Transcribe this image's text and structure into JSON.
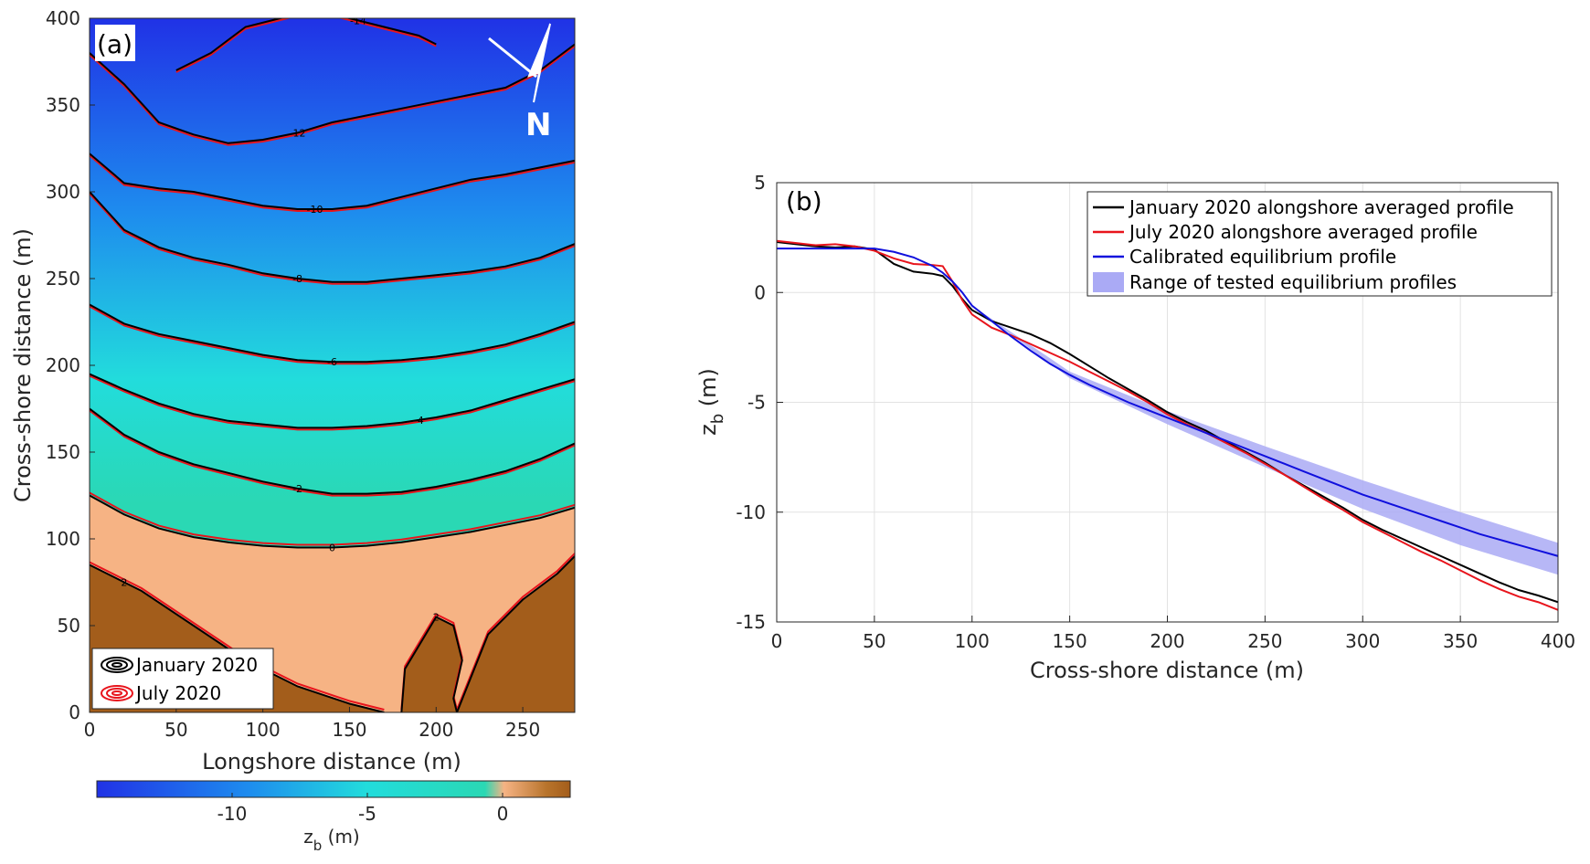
{
  "chart_data": [
    {
      "panel_label": "(a)",
      "type": "heatmap",
      "xlabel": "Longshore distance (m)",
      "ylabel": "Cross-shore distance (m)",
      "xlim": [
        0,
        280
      ],
      "ylim": [
        0,
        400
      ],
      "xticks": [
        "0",
        "50",
        "100",
        "150",
        "200",
        "250"
      ],
      "yticks": [
        "0",
        "50",
        "100",
        "150",
        "200",
        "250",
        "300",
        "350",
        "400"
      ],
      "colorbar": {
        "label_main": "z",
        "label_sub": "b",
        "label_unit": " (m)",
        "range": [
          -15,
          2.5
        ],
        "ticks": [
          "-10",
          "-5",
          "0"
        ],
        "colors": [
          "#2032e6",
          "#1e8cee",
          "#22dcdc",
          "#2ad8b4",
          "#f6b384",
          "#b8742c",
          "#a35d1b"
        ]
      },
      "north_arrow_label": "N",
      "contour_levels": [
        -14,
        -12,
        -10,
        -8,
        -6,
        -4,
        -2,
        0,
        2
      ],
      "legend": [
        {
          "name": "January 2020",
          "color": "#000000"
        },
        {
          "name": "July 2020",
          "color": "#e8141c"
        }
      ],
      "surface_contours": [
        {
          "level": -14,
          "label": "-14",
          "x": [
            50,
            70,
            90,
            110,
            130,
            150,
            170,
            190,
            200
          ],
          "y": [
            370,
            380,
            395,
            400,
            405,
            400,
            395,
            390,
            385
          ],
          "label_x": 155
        },
        {
          "level": -12,
          "label": "-12",
          "x": [
            0,
            20,
            40,
            60,
            80,
            100,
            120,
            140,
            160,
            180,
            200,
            220,
            240,
            260,
            280
          ],
          "y": [
            380,
            362,
            340,
            333,
            328,
            330,
            334,
            340,
            344,
            348,
            352,
            356,
            360,
            370,
            385
          ],
          "label_x": 120
        },
        {
          "level": -10,
          "label": "-10",
          "x": [
            0,
            20,
            40,
            60,
            80,
            100,
            120,
            140,
            160,
            180,
            200,
            220,
            240,
            260,
            280
          ],
          "y": [
            322,
            305,
            302,
            300,
            296,
            292,
            290,
            290,
            292,
            297,
            302,
            307,
            310,
            314,
            318
          ],
          "label_x": 130
        },
        {
          "level": -8,
          "label": "-8",
          "x": [
            0,
            20,
            40,
            60,
            80,
            100,
            120,
            140,
            160,
            180,
            200,
            220,
            240,
            260,
            280
          ],
          "y": [
            300,
            278,
            268,
            262,
            258,
            253,
            250,
            248,
            248,
            250,
            252,
            254,
            257,
            262,
            270
          ],
          "label_x": 120
        },
        {
          "level": -6,
          "label": "-6",
          "x": [
            0,
            20,
            40,
            60,
            80,
            100,
            120,
            140,
            160,
            180,
            200,
            220,
            240,
            260,
            280
          ],
          "y": [
            235,
            224,
            218,
            214,
            210,
            206,
            203,
            202,
            202,
            203,
            205,
            208,
            212,
            218,
            225
          ],
          "label_x": 140
        },
        {
          "level": -4,
          "label": "-4",
          "x": [
            0,
            20,
            40,
            60,
            80,
            100,
            120,
            140,
            160,
            180,
            200,
            220,
            240,
            260,
            280
          ],
          "y": [
            195,
            186,
            178,
            172,
            168,
            166,
            164,
            164,
            165,
            167,
            170,
            174,
            180,
            186,
            192
          ],
          "label_x": 190
        },
        {
          "level": -2,
          "label": "-2",
          "x": [
            0,
            20,
            40,
            60,
            80,
            100,
            120,
            140,
            160,
            180,
            200,
            220,
            240,
            260,
            280
          ],
          "y": [
            175,
            160,
            150,
            143,
            138,
            133,
            129,
            126,
            126,
            127,
            130,
            134,
            139,
            146,
            155
          ],
          "label_x": 120
        },
        {
          "level": 0,
          "label": "0",
          "x": [
            0,
            20,
            40,
            60,
            80,
            100,
            120,
            140,
            160,
            180,
            200,
            220,
            240,
            260,
            280
          ],
          "y": [
            125,
            114,
            106,
            101,
            98,
            96,
            95,
            95,
            96,
            98,
            101,
            104,
            108,
            112,
            118
          ],
          "label_x": 140
        },
        {
          "level": 2,
          "label": "2",
          "x": [
            0,
            30,
            60,
            90,
            120,
            150,
            170
          ],
          "y": [
            85,
            70,
            50,
            30,
            15,
            5,
            0
          ],
          "label_x": 20
        },
        {
          "level": 2,
          "label": "2",
          "x": [
            180,
            182,
            200,
            210,
            215,
            210,
            212,
            230,
            250,
            270,
            280
          ],
          "y": [
            0,
            25,
            55,
            50,
            30,
            8,
            0,
            45,
            65,
            80,
            90
          ],
          "label_x": 200
        }
      ]
    },
    {
      "panel_label": "(b)",
      "type": "line",
      "xlabel": "Cross-shore distance (m)",
      "ylabel_main": "z",
      "ylabel_sub": "b",
      "ylabel_unit": " (m)",
      "xlim": [
        0,
        400
      ],
      "ylim": [
        -15,
        5
      ],
      "xticks": [
        "0",
        "50",
        "100",
        "150",
        "200",
        "250",
        "300",
        "350",
        "400"
      ],
      "yticks": [
        "5",
        "0",
        "-5",
        "-10",
        "-15"
      ],
      "grid": true,
      "legend_position": "top-right",
      "x": [
        0,
        10,
        20,
        30,
        40,
        50,
        60,
        70,
        80,
        85,
        90,
        95,
        100,
        110,
        120,
        130,
        140,
        150,
        160,
        170,
        180,
        190,
        200,
        210,
        220,
        230,
        240,
        250,
        260,
        270,
        280,
        290,
        300,
        310,
        320,
        330,
        340,
        350,
        360,
        370,
        380,
        390,
        400
      ],
      "series": [
        {
          "name": "January 2020 alongshore averaged profile",
          "color": "#000000",
          "values": [
            2.3,
            2.2,
            2.1,
            2.05,
            2.1,
            1.95,
            1.3,
            0.95,
            0.85,
            0.75,
            0.3,
            -0.3,
            -0.8,
            -1.3,
            -1.6,
            -1.9,
            -2.3,
            -2.8,
            -3.35,
            -3.9,
            -4.4,
            -4.9,
            -5.45,
            -5.9,
            -6.3,
            -6.8,
            -7.25,
            -7.75,
            -8.3,
            -8.8,
            -9.3,
            -9.8,
            -10.35,
            -10.8,
            -11.2,
            -11.6,
            -12.0,
            -12.4,
            -12.8,
            -13.2,
            -13.55,
            -13.8,
            -14.1
          ]
        },
        {
          "name": "July 2020 alongshore averaged profile",
          "color": "#e8141c",
          "values": [
            2.35,
            2.25,
            2.15,
            2.2,
            2.1,
            1.9,
            1.55,
            1.3,
            1.25,
            1.2,
            0.5,
            -0.35,
            -1.0,
            -1.6,
            -1.95,
            -2.35,
            -2.75,
            -3.15,
            -3.6,
            -4.05,
            -4.5,
            -5.0,
            -5.55,
            -6.0,
            -6.4,
            -6.85,
            -7.3,
            -7.8,
            -8.3,
            -8.85,
            -9.4,
            -9.9,
            -10.45,
            -10.9,
            -11.35,
            -11.8,
            -12.2,
            -12.65,
            -13.1,
            -13.5,
            -13.85,
            -14.1,
            -14.45
          ]
        },
        {
          "name": "Calibrated equilibrium profile",
          "color": "#1010dd",
          "values": [
            2.0,
            2.0,
            2.0,
            2.0,
            2.0,
            2.0,
            1.85,
            1.6,
            1.2,
            0.9,
            0.5,
            0.0,
            -0.6,
            -1.3,
            -2.0,
            -2.65,
            -3.25,
            -3.75,
            -4.2,
            -4.6,
            -5.0,
            -5.35,
            -5.7,
            -6.05,
            -6.4,
            -6.75,
            -7.1,
            -7.45,
            -7.8,
            -8.15,
            -8.5,
            -8.85,
            -9.2,
            -9.5,
            -9.8,
            -10.1,
            -10.4,
            -10.7,
            -11.0,
            -11.25,
            -11.5,
            -11.75,
            -12.0
          ]
        }
      ],
      "band": {
        "name": "Range of tested equilibrium profiles",
        "color": "#aaaaf5",
        "x": [
          100,
          150,
          200,
          250,
          300,
          350,
          400
        ],
        "upper": [
          -0.6,
          -3.6,
          -5.4,
          -7.0,
          -8.55,
          -10.0,
          -11.4
        ],
        "lower": [
          -0.6,
          -3.9,
          -6.0,
          -7.95,
          -9.85,
          -11.5,
          -12.85
        ]
      }
    }
  ]
}
